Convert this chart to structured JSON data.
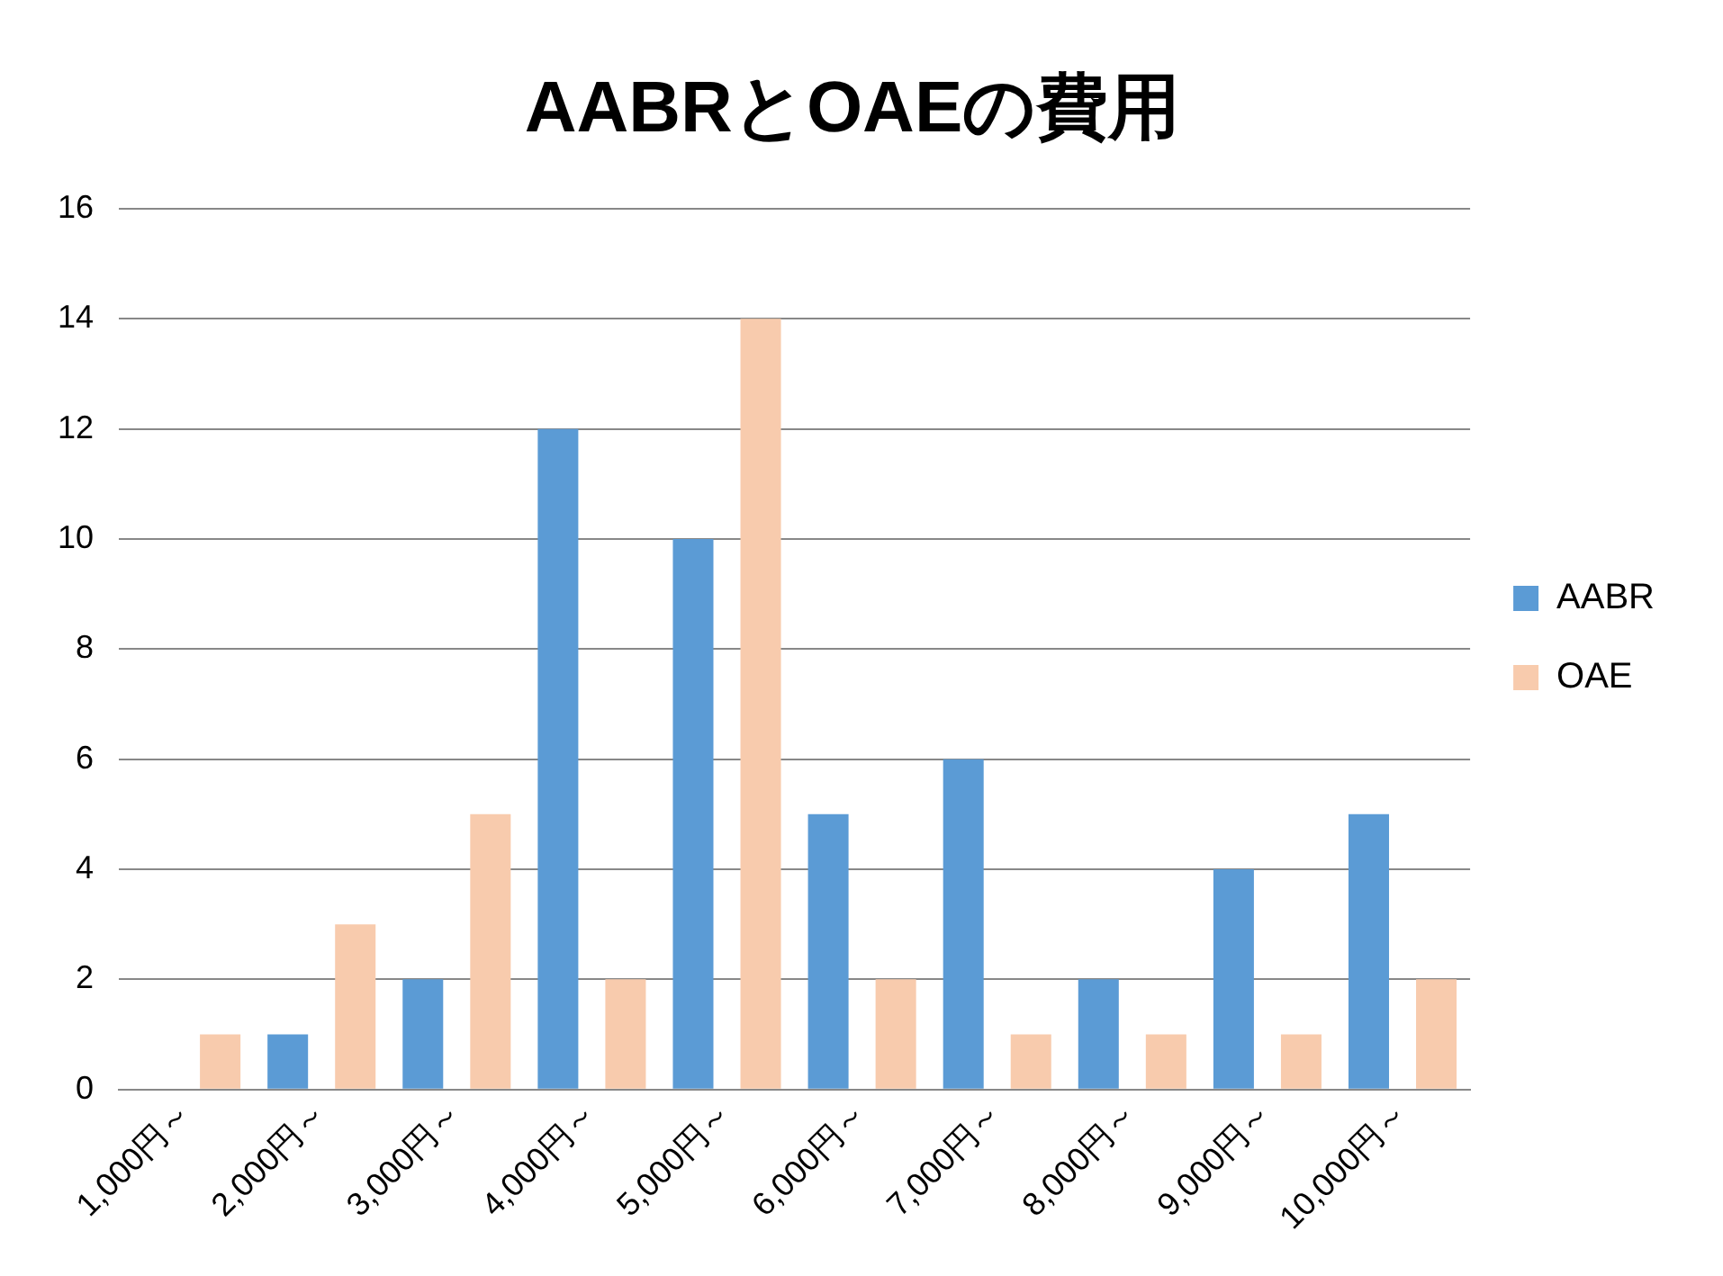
{
  "chart_data": {
    "type": "bar",
    "title": "AABRとOAEの費用",
    "categories": [
      "1,000円～",
      "2,000円～",
      "3,000円～",
      "4,000円～",
      "5,000円～",
      "6,000円～",
      "7,000円～",
      "8,000円～",
      "9,000円～",
      "10,000円～"
    ],
    "series": [
      {
        "name": "AABR",
        "color": "#5b9bd5",
        "values": [
          0,
          1,
          2,
          12,
          10,
          5,
          6,
          2,
          4,
          5
        ]
      },
      {
        "name": "OAE",
        "color": "#f8cbad",
        "values": [
          1,
          3,
          5,
          2,
          14,
          2,
          1,
          1,
          1,
          2
        ]
      }
    ],
    "ylim": [
      0,
      16
    ],
    "yticks": [
      0,
      2,
      4,
      6,
      8,
      10,
      12,
      14,
      16
    ],
    "grid": "y",
    "legend": "right"
  }
}
